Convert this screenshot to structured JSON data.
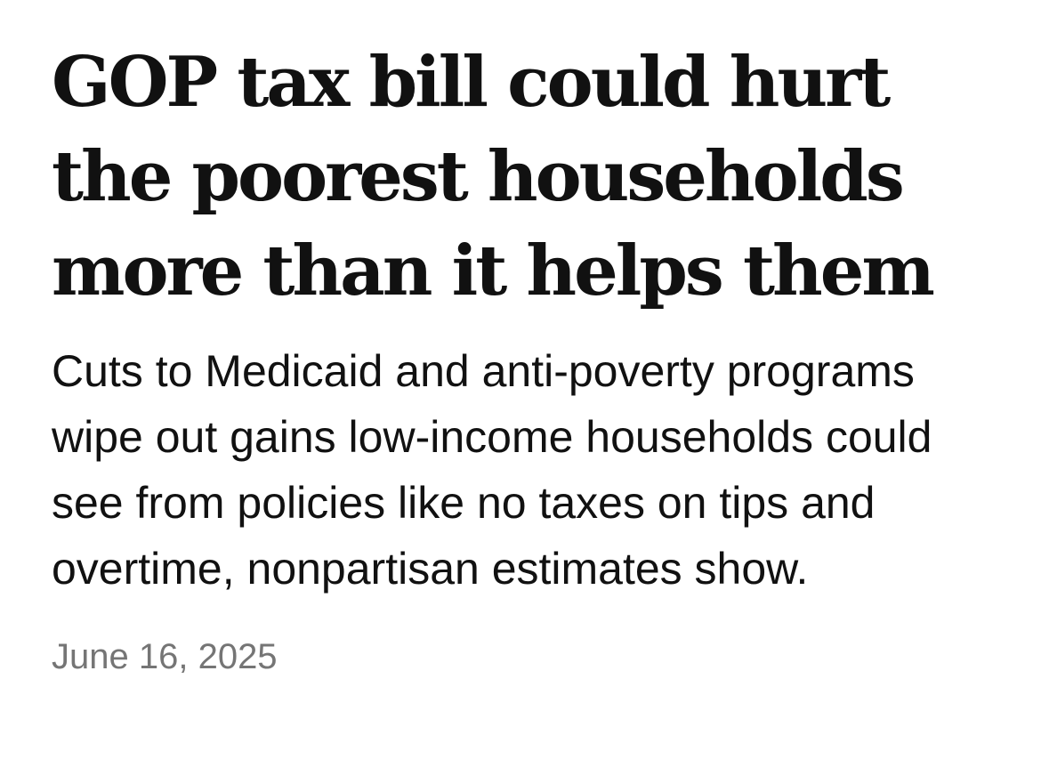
{
  "article": {
    "headline": "GOP tax bill could hurt the poorest households more than it helps them",
    "dek": "Cuts to Medicaid and anti-poverty programs wipe out gains low-income households could see from policies like no taxes on tips and overtime, nonpartisan estimates show.",
    "date": "June 16, 2025"
  }
}
